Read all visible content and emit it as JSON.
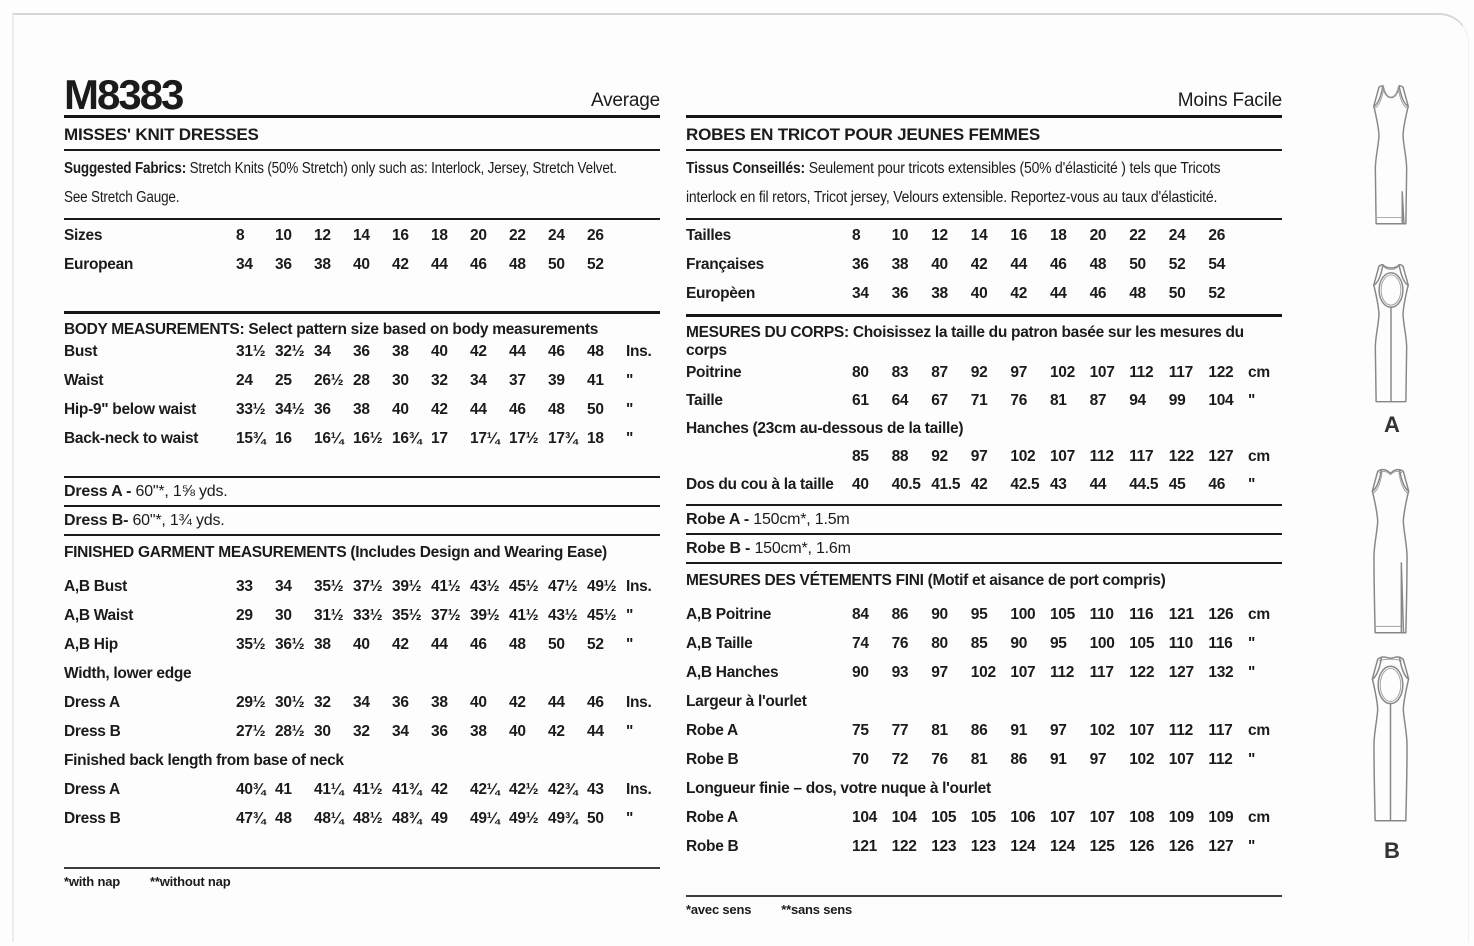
{
  "colors": {
    "ink": "#1b1b1b",
    "line_art": "#878787"
  },
  "left": {
    "pattern_number": "M8383",
    "difficulty": "Average",
    "title": "MISSES' KNIT DRESSES",
    "fabrics_label": "Suggested Fabrics:",
    "fabrics_line1": "Stretch Knits (50% Stretch) only such as: Interlock, Jersey, Stretch Velvet.",
    "fabrics_line2": "See Stretch Gauge.",
    "size_rows": [
      {
        "label": "Sizes",
        "values": [
          "8",
          "10",
          "12",
          "14",
          "16",
          "18",
          "20",
          "22",
          "24",
          "26"
        ],
        "unit": ""
      },
      {
        "label": "European",
        "values": [
          "34",
          "36",
          "38",
          "40",
          "42",
          "44",
          "46",
          "48",
          "50",
          "52"
        ],
        "unit": ""
      }
    ],
    "body_title": "BODY MEASUREMENTS: Select pattern size based on body measurements",
    "body_rows": [
      {
        "label": "Bust",
        "values": [
          "31½",
          "32½",
          "34",
          "36",
          "38",
          "40",
          "42",
          "44",
          "46",
          "48"
        ],
        "unit": "Ins."
      },
      {
        "label": "Waist",
        "values": [
          "24",
          "25",
          "26½",
          "28",
          "30",
          "32",
          "34",
          "37",
          "39",
          "41"
        ],
        "unit": "\""
      },
      {
        "label": "Hip-9\" below waist",
        "values": [
          "33½",
          "34½",
          "36",
          "38",
          "40",
          "42",
          "44",
          "46",
          "48",
          "50"
        ],
        "unit": "\""
      },
      {
        "label": "Back-neck to waist",
        "values": [
          "15¾",
          "16",
          "16¼",
          "16½",
          "16¾",
          "17",
          "17¼",
          "17½",
          "17¾",
          "18"
        ],
        "unit": "\""
      }
    ],
    "yardage": [
      {
        "label": "Dress A -",
        "text": "60\"*, 1⅝ yds."
      },
      {
        "label": "Dress B-",
        "text": "60\"*, 1¾ yds."
      }
    ],
    "finished_title": "FINISHED GARMENT MEASUREMENTS (Includes Design and Wearing Ease)",
    "finished_rows": [
      {
        "label": "A,B Bust",
        "values": [
          "33",
          "34",
          "35½",
          "37½",
          "39½",
          "41½",
          "43½",
          "45½",
          "47½",
          "49½"
        ],
        "unit": "Ins."
      },
      {
        "label": "A,B Waist",
        "values": [
          "29",
          "30",
          "31½",
          "33½",
          "35½",
          "37½",
          "39½",
          "41½",
          "43½",
          "45½"
        ],
        "unit": "\""
      },
      {
        "label": "A,B Hip",
        "values": [
          "35½",
          "36½",
          "38",
          "40",
          "42",
          "44",
          "46",
          "48",
          "50",
          "52"
        ],
        "unit": "\""
      },
      {
        "label": "Width, lower edge",
        "type": "full"
      },
      {
        "label": "Dress A",
        "values": [
          "29½",
          "30½",
          "32",
          "34",
          "36",
          "38",
          "40",
          "42",
          "44",
          "46"
        ],
        "unit": "Ins."
      },
      {
        "label": "Dress B",
        "values": [
          "27½",
          "28½",
          "30",
          "32",
          "34",
          "36",
          "38",
          "40",
          "42",
          "44"
        ],
        "unit": "\""
      },
      {
        "label": "Finished back length from base of neck",
        "type": "full"
      },
      {
        "label": "Dress A",
        "values": [
          "40¾",
          "41",
          "41¼",
          "41½",
          "41¾",
          "42",
          "42¼",
          "42½",
          "42¾",
          "43"
        ],
        "unit": "Ins."
      },
      {
        "label": "Dress B",
        "values": [
          "47¾",
          "48",
          "48¼",
          "48½",
          "48¾",
          "49",
          "49¼",
          "49½",
          "49¾",
          "50"
        ],
        "unit": "\""
      }
    ],
    "footnote1": "*with nap",
    "footnote2": "**without nap"
  },
  "right": {
    "difficulty": "Moins Facile",
    "title": "ROBES EN TRICOT POUR JEUNES FEMMES",
    "fabrics_label": "Tissus Conseillés:",
    "fabrics_line1": "Seulement pour tricots extensibles (50% d'élasticité ) tels que Tricots",
    "fabrics_line2": "interlock en fil retors, Tricot jersey, Velours extensible. Reportez-vous au taux d'élasticité.",
    "size_rows": [
      {
        "label": "Tailles",
        "values": [
          "8",
          "10",
          "12",
          "14",
          "16",
          "18",
          "20",
          "22",
          "24",
          "26"
        ],
        "unit": ""
      },
      {
        "label": "Françaises",
        "values": [
          "36",
          "38",
          "40",
          "42",
          "44",
          "46",
          "48",
          "50",
          "52",
          "54"
        ],
        "unit": ""
      },
      {
        "label": "Europèen",
        "values": [
          "34",
          "36",
          "38",
          "40",
          "42",
          "44",
          "46",
          "48",
          "50",
          "52"
        ],
        "unit": ""
      }
    ],
    "body_title": "MESURES DU CORPS: Choisissez la taille du patron basée sur les mesures du corps",
    "body_rows": [
      {
        "label": "Poitrine",
        "values": [
          "80",
          "83",
          "87",
          "92",
          "97",
          "102",
          "107",
          "112",
          "117",
          "122"
        ],
        "unit": "cm"
      },
      {
        "label": "Taille",
        "values": [
          "61",
          "64",
          "67",
          "71",
          "76",
          "81",
          "87",
          "94",
          "99",
          "104"
        ],
        "unit": "\""
      },
      {
        "label": "Hanches (23cm au-dessous de la taille)",
        "type": "full"
      },
      {
        "label": "",
        "values": [
          "85",
          "88",
          "92",
          "97",
          "102",
          "107",
          "112",
          "117",
          "122",
          "127"
        ],
        "unit": "cm"
      },
      {
        "label": "Dos du cou à la taille",
        "values": [
          "40",
          "40.5",
          "41.5",
          "42",
          "42.5",
          "43",
          "44",
          "44.5",
          "45",
          "46"
        ],
        "unit": "\""
      }
    ],
    "yardage": [
      {
        "label": "Robe A -",
        "text": "150cm*, 1.5m"
      },
      {
        "label": "Robe B -",
        "text": "150cm*, 1.6m"
      }
    ],
    "finished_title": "MESURES DES VÉTEMENTS FINI (Motif et aisance de port compris)",
    "finished_rows": [
      {
        "label": "A,B Poitrine",
        "values": [
          "84",
          "86",
          "90",
          "95",
          "100",
          "105",
          "110",
          "116",
          "121",
          "126"
        ],
        "unit": "cm"
      },
      {
        "label": "A,B Taille",
        "values": [
          "74",
          "76",
          "80",
          "85",
          "90",
          "95",
          "100",
          "105",
          "110",
          "116"
        ],
        "unit": "\""
      },
      {
        "label": "A,B Hanches",
        "values": [
          "90",
          "93",
          "97",
          "102",
          "107",
          "112",
          "117",
          "122",
          "127",
          "132"
        ],
        "unit": "\""
      },
      {
        "label": "Largeur à l'ourlet",
        "type": "full"
      },
      {
        "label": "Robe A",
        "values": [
          "75",
          "77",
          "81",
          "86",
          "91",
          "97",
          "102",
          "107",
          "112",
          "117"
        ],
        "unit": "cm"
      },
      {
        "label": "Robe B",
        "values": [
          "70",
          "72",
          "76",
          "81",
          "86",
          "91",
          "97",
          "102",
          "107",
          "112"
        ],
        "unit": "\""
      },
      {
        "label": "Longueur finie – dos, votre nuque à l'ourlet",
        "type": "full"
      },
      {
        "label": "Robe A",
        "values": [
          "104",
          "104",
          "105",
          "105",
          "106",
          "107",
          "107",
          "108",
          "109",
          "109"
        ],
        "unit": "cm"
      },
      {
        "label": "Robe B",
        "values": [
          "121",
          "122",
          "123",
          "123",
          "124",
          "124",
          "125",
          "126",
          "126",
          "127"
        ],
        "unit": "\""
      }
    ],
    "footnote1": "*avec sens",
    "footnote2": "**sans sens"
  },
  "figures": {
    "a_label": "A",
    "b_label": "B"
  }
}
